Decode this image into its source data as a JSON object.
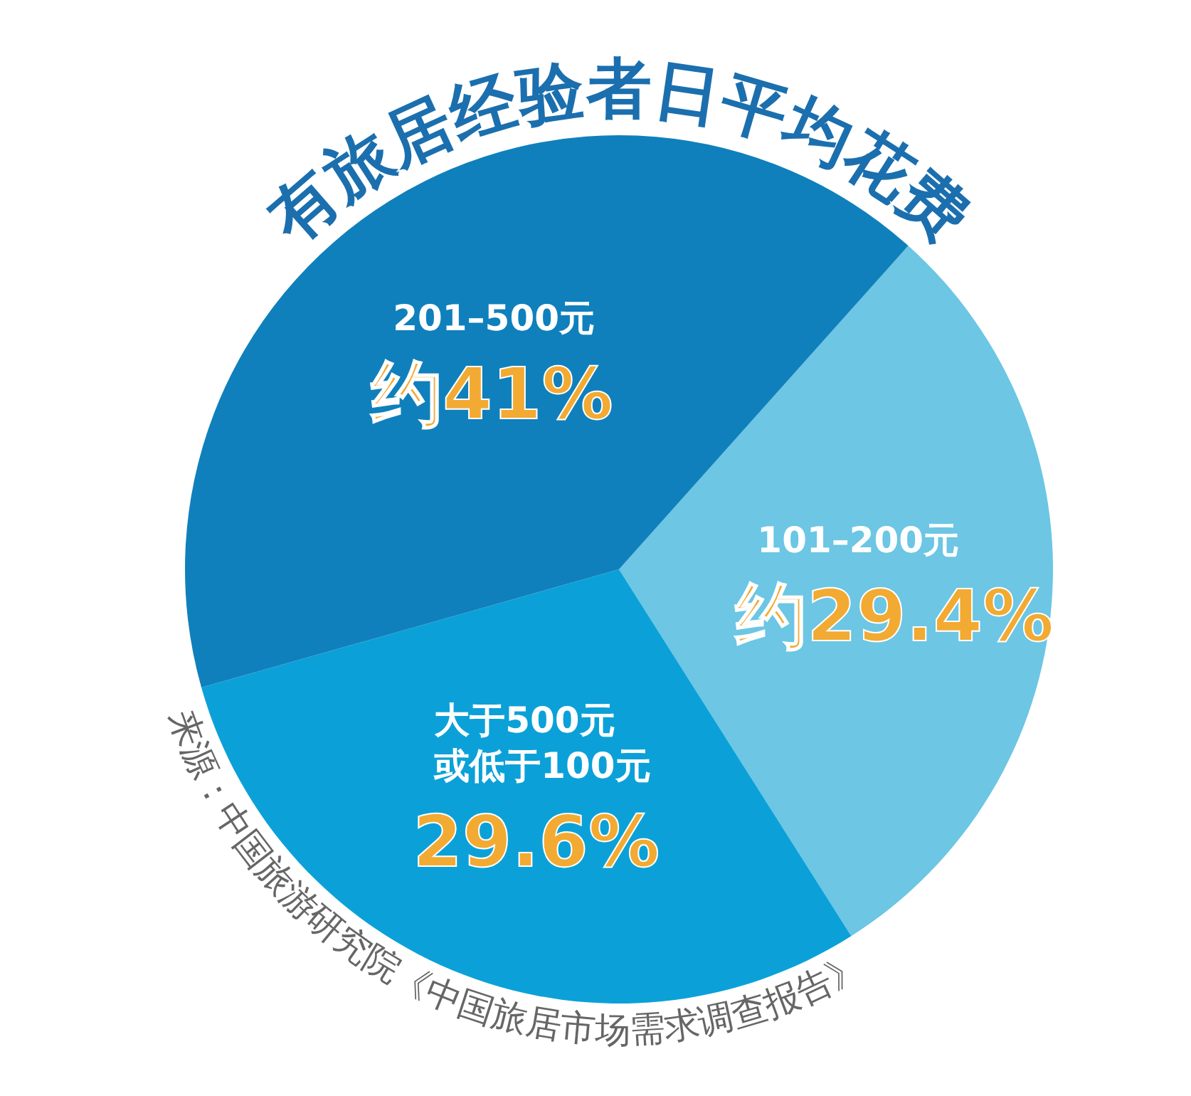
{
  "chart_data": {
    "type": "pie",
    "title": "有旅居经验者日平均花费",
    "categories": [
      "101–200元",
      "大于500元或低于100元",
      "201–500元"
    ],
    "values": [
      29.4,
      29.6,
      41
    ],
    "colors": [
      "#6cc6e4",
      "#0ba1d8",
      "#0f80bc"
    ],
    "value_labels": [
      "约29.4%",
      "29.6%",
      "约41%"
    ],
    "annotations": [
      "来源：中国旅游研究院《中国旅居市场需求调查报告》"
    ]
  }
}
